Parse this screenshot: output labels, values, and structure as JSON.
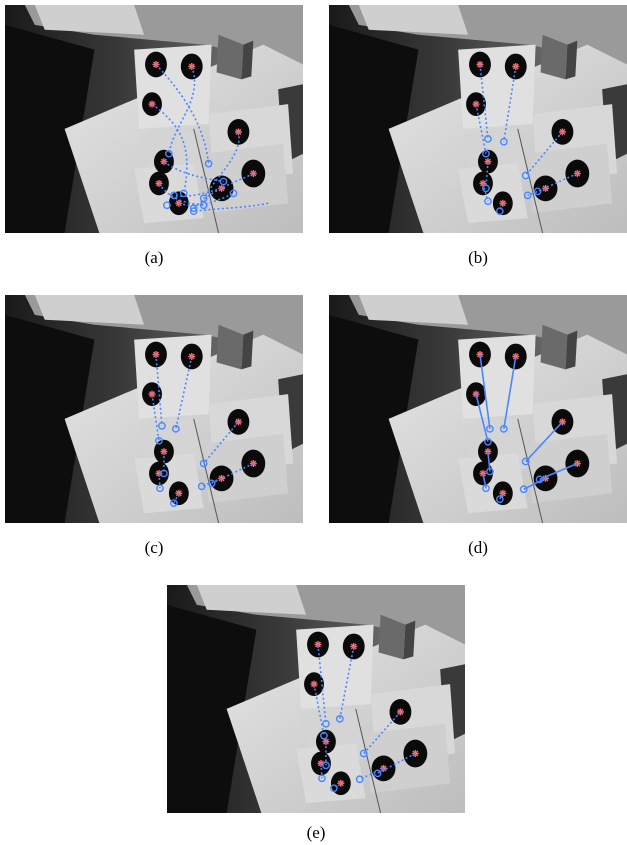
{
  "figure": {
    "panels": [
      {
        "id": "a",
        "label": "(a)"
      },
      {
        "id": "b",
        "label": "(b)"
      },
      {
        "id": "c",
        "label": "(c)"
      },
      {
        "id": "d",
        "label": "(d)"
      },
      {
        "id": "e",
        "label": "(e)"
      }
    ]
  },
  "colors": {
    "background": "#ffffff",
    "scene_dark": "#111111",
    "paper": "#d8d8d8",
    "blob": "#0a0a0a",
    "marker_red": "#ff6b6b",
    "track_blue": "#4a86ff"
  }
}
